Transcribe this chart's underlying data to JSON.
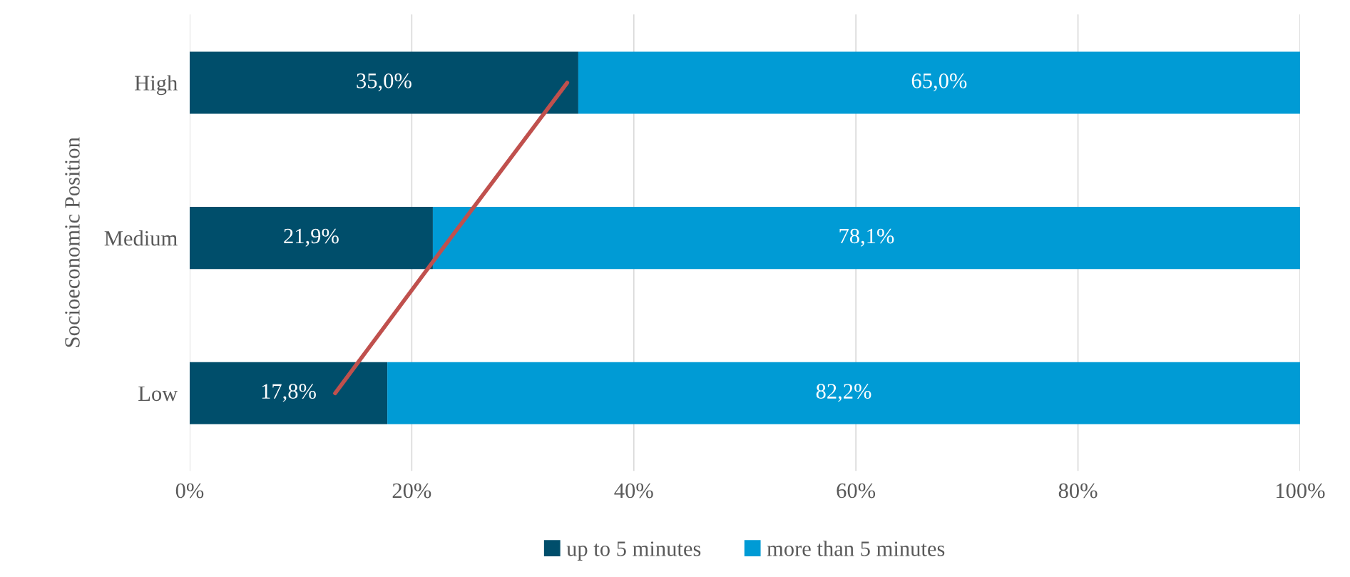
{
  "chart_data": {
    "type": "bar",
    "orientation": "horizontal",
    "stacked": true,
    "ylabel": "Socioeconomic Position",
    "categories": [
      "High",
      "Medium",
      "Low"
    ],
    "series": [
      {
        "name": "up to 5 minutes",
        "color": "#004e6b",
        "values": [
          35.0,
          21.9,
          17.8
        ],
        "value_labels": [
          "35,0%",
          "21,9%",
          "17,8%"
        ]
      },
      {
        "name": "more than 5 minutes",
        "color": "#009bd5",
        "values": [
          65.0,
          78.1,
          82.2
        ],
        "value_labels": [
          "65,0%",
          "78,1%",
          "82,2%"
        ]
      },
      {
        "type": "line",
        "color": "#c0504d",
        "values": [
          34.0,
          23.5,
          13.1
        ]
      }
    ],
    "xlim": [
      0,
      100
    ],
    "xticks": [
      {
        "value": 0,
        "label": "0%"
      },
      {
        "value": 20,
        "label": "20%"
      },
      {
        "value": 40,
        "label": "40%"
      },
      {
        "value": 60,
        "label": "60%"
      },
      {
        "value": 80,
        "label": "80%"
      },
      {
        "value": 100,
        "label": "100%"
      }
    ],
    "grid": "x",
    "legend": "bottom"
  }
}
